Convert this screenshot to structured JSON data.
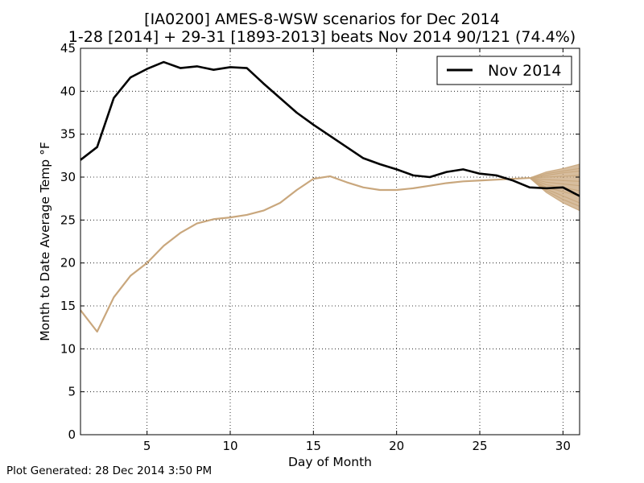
{
  "title": {
    "line1": "[IA0200] AMES-8-WSW scenarios for Dec 2014",
    "line2": "1-28 [2014] + 29-31 [1893-2013] beats Nov 2014 90/121 (74.4%)"
  },
  "footer": "Plot Generated: 28 Dec 2014 3:50 PM",
  "chart_data": {
    "type": "line",
    "xlabel": "Day of Month",
    "ylabel": "Month to Date Average Temp °F",
    "xlim": [
      1,
      31
    ],
    "ylim": [
      0,
      45
    ],
    "xticks": [
      5,
      10,
      15,
      20,
      25,
      30
    ],
    "yticks": [
      0,
      5,
      10,
      15,
      20,
      25,
      30,
      35,
      40,
      45
    ],
    "grid": true,
    "legend_position": "top-right",
    "colors": {
      "nov": "#000000",
      "scenario": "#c9a77d",
      "scenario_fill": "#c9a77d"
    },
    "series": [
      {
        "name": "Nov 2014",
        "x": [
          1,
          2,
          3,
          4,
          5,
          6,
          7,
          8,
          9,
          10,
          11,
          12,
          13,
          14,
          15,
          16,
          17,
          18,
          19,
          20,
          21,
          22,
          23,
          24,
          25,
          26,
          27,
          28,
          29,
          30,
          31
        ],
        "y": [
          32.0,
          33.5,
          39.2,
          41.6,
          42.6,
          43.4,
          42.7,
          42.9,
          42.5,
          42.8,
          42.7,
          40.9,
          39.2,
          37.5,
          36.1,
          34.8,
          33.5,
          32.2,
          31.5,
          30.9,
          30.2,
          30.0,
          30.6,
          30.9,
          30.4,
          30.2,
          29.6,
          28.8,
          28.7,
          28.8,
          27.8
        ]
      }
    ],
    "dec_2014_observed": {
      "x": [
        1,
        2,
        3,
        4,
        5,
        6,
        7,
        8,
        9,
        10,
        11,
        12,
        13,
        14,
        15,
        16,
        17,
        18,
        19,
        20,
        21,
        22,
        23,
        24,
        25,
        26,
        27,
        28
      ],
      "y": [
        14.5,
        12.0,
        16.0,
        18.5,
        20.0,
        22.0,
        23.5,
        24.6,
        25.1,
        25.3,
        25.6,
        26.1,
        27.0,
        28.5,
        29.8,
        30.1,
        29.4,
        28.8,
        28.5,
        28.5,
        28.7,
        29.0,
        29.3,
        29.5,
        29.6,
        29.7,
        29.8,
        29.9
      ]
    },
    "scenarios": {
      "x": [
        28,
        29,
        30,
        31
      ],
      "envelope_upper": [
        29.9,
        30.6,
        31.0,
        31.5
      ],
      "envelope_lower": [
        29.9,
        28.2,
        27.0,
        26.1
      ],
      "lines_y": [
        [
          29.9,
          30.6,
          31.0,
          31.5
        ],
        [
          29.9,
          30.4,
          30.7,
          31.0
        ],
        [
          29.9,
          30.2,
          30.5,
          30.7
        ],
        [
          29.9,
          30.0,
          30.1,
          30.2
        ],
        [
          29.9,
          29.7,
          29.6,
          29.5
        ],
        [
          29.9,
          29.4,
          29.2,
          29.0
        ],
        [
          29.9,
          29.1,
          28.8,
          28.4
        ],
        [
          29.9,
          28.8,
          28.3,
          27.8
        ],
        [
          29.9,
          28.6,
          27.8,
          27.0
        ],
        [
          29.9,
          28.4,
          27.4,
          26.6
        ],
        [
          29.9,
          28.2,
          27.0,
          26.1
        ]
      ]
    }
  }
}
